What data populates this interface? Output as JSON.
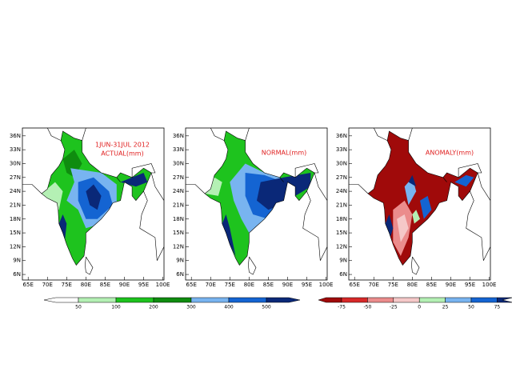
{
  "panels": [
    {
      "title": [
        "1JUN-31JUL 2012",
        "ACTUAL(mm)"
      ]
    },
    {
      "title": [
        "NORMAL(mm)"
      ]
    },
    {
      "title": [
        "ANOMALY(mm)"
      ]
    }
  ],
  "axes": {
    "xlim": [
      63.5,
      100.3
    ],
    "ylim": [
      4.8,
      37.7
    ],
    "xticks": [
      {
        "value": 65,
        "label": "65E"
      },
      {
        "value": 70,
        "label": "70E"
      },
      {
        "value": 75,
        "label": "75E"
      },
      {
        "value": 80,
        "label": "80E"
      },
      {
        "value": 85,
        "label": "85E"
      },
      {
        "value": 90,
        "label": "90E"
      },
      {
        "value": 95,
        "label": "95E"
      },
      {
        "value": 100,
        "label": "100E"
      }
    ],
    "yticks": [
      {
        "value": 36,
        "label": "36N"
      },
      {
        "value": 33,
        "label": "33N"
      },
      {
        "value": 30,
        "label": "30N"
      },
      {
        "value": 27,
        "label": "27N"
      },
      {
        "value": 24,
        "label": "24N"
      },
      {
        "value": 21,
        "label": "21N"
      },
      {
        "value": 18,
        "label": "18N"
      },
      {
        "value": 15,
        "label": "15N"
      },
      {
        "value": 12,
        "label": "12N"
      },
      {
        "value": 9,
        "label": "9N"
      },
      {
        "value": 6,
        "label": "6N"
      }
    ]
  },
  "colorbars": [
    {
      "levels": [
        50,
        100,
        200,
        300,
        400,
        500
      ],
      "colors": [
        "#ffffff",
        "#b4f0b4",
        "#1ec31e",
        "#0f8c0f",
        "#78b4f0",
        "#1464d2",
        "#0a2878"
      ]
    },
    {
      "levels": [
        -75,
        -50,
        -25,
        0,
        25,
        50,
        75
      ],
      "colors": [
        "#a00a0a",
        "#d72828",
        "#eb8c8c",
        "#f5c8c8",
        "#b4f0b4",
        "#78b4f0",
        "#1464d2",
        "#0a2878"
      ]
    }
  ]
}
